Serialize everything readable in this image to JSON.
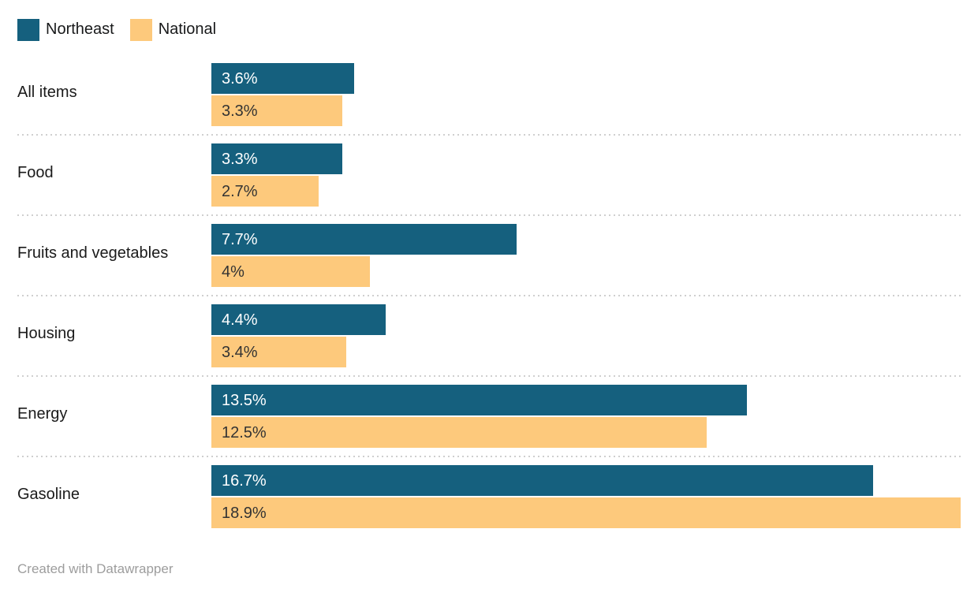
{
  "legend": {
    "items": [
      {
        "label": "Northeast",
        "color": "#15607e"
      },
      {
        "label": "National",
        "color": "#fdc97c"
      }
    ]
  },
  "chart_data": {
    "type": "bar",
    "orientation": "horizontal",
    "title": "",
    "xlabel": "",
    "ylabel": "",
    "xmax": 18.9,
    "grid": "off",
    "legend_position": "top-left",
    "value_suffix": "%",
    "categories": [
      "All items",
      "Food",
      "Fruits and vegetables",
      "Housing",
      "Energy",
      "Gasoline"
    ],
    "series": [
      {
        "name": "Northeast",
        "color": "#15607e",
        "label_color": "#ffffff",
        "values": [
          3.6,
          3.3,
          7.7,
          4.4,
          13.5,
          16.7
        ],
        "labels": [
          "3.6%",
          "3.3%",
          "7.7%",
          "4.4%",
          "13.5%",
          "16.7%"
        ]
      },
      {
        "name": "National",
        "color": "#fdc97c",
        "label_color": "#333333",
        "values": [
          3.3,
          2.7,
          4,
          3.4,
          12.5,
          18.9
        ],
        "labels": [
          "3.3%",
          "2.7%",
          "4%",
          "3.4%",
          "12.5%",
          "18.9%"
        ]
      }
    ]
  },
  "footer": {
    "credit": "Created with Datawrapper"
  },
  "style": {
    "separator_color": "#cfcfcf",
    "category_label_color": "#1a1a1a",
    "footer_color": "#9d9d9d"
  }
}
